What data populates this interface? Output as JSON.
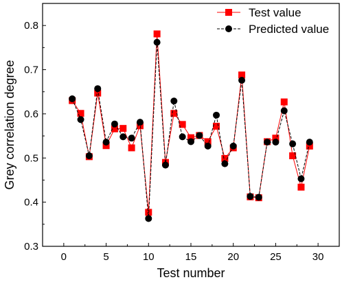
{
  "chart_data": {
    "type": "line",
    "xlabel": "Test number",
    "ylabel": "Grey correlation degree",
    "xlim": [
      -2.5,
      32.5
    ],
    "ylim": [
      0.3,
      0.85
    ],
    "xticks": [
      0,
      5,
      10,
      15,
      20,
      25,
      30
    ],
    "xtick_labels": [
      "0",
      "5",
      "10",
      "15",
      "20",
      "25",
      "30"
    ],
    "yticks": [
      0.3,
      0.4,
      0.5,
      0.6,
      0.7,
      0.8
    ],
    "ytick_labels": [
      "0.3",
      "0.4",
      "0.5",
      "0.6",
      "0.7",
      "0.8"
    ],
    "grid": false,
    "legend_position": "top-right",
    "x": [
      1,
      2,
      3,
      4,
      5,
      6,
      7,
      8,
      9,
      10,
      11,
      12,
      13,
      14,
      15,
      16,
      17,
      18,
      19,
      20,
      21,
      22,
      23,
      24,
      25,
      26,
      27,
      28,
      29
    ],
    "series": [
      {
        "name": "Test value",
        "color": "#ff0000",
        "marker": "square",
        "line_style": "solid",
        "values": [
          0.63,
          0.601,
          0.503,
          0.647,
          0.528,
          0.566,
          0.567,
          0.523,
          0.573,
          0.377,
          0.781,
          0.49,
          0.601,
          0.576,
          0.546,
          0.551,
          0.537,
          0.572,
          0.499,
          0.523,
          0.688,
          0.412,
          0.41,
          0.537,
          0.545,
          0.627,
          0.505,
          0.434,
          0.527
        ]
      },
      {
        "name": "Predicted value",
        "color": "#000000",
        "marker": "circle",
        "line_style": "dashed",
        "values": [
          0.634,
          0.587,
          0.505,
          0.657,
          0.536,
          0.577,
          0.548,
          0.545,
          0.581,
          0.363,
          0.762,
          0.484,
          0.629,
          0.548,
          0.537,
          0.551,
          0.527,
          0.597,
          0.487,
          0.527,
          0.676,
          0.413,
          0.411,
          0.536,
          0.536,
          0.607,
          0.532,
          0.453,
          0.536
        ]
      }
    ]
  }
}
